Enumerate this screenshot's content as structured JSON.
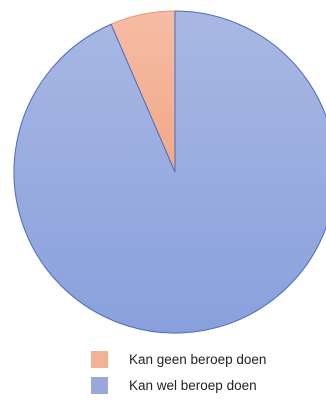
{
  "chart_data": {
    "type": "pie",
    "title": "",
    "slices": [
      {
        "label": "Kan geen beroep doen",
        "value": 6.5,
        "color": "#f4b196",
        "stroke": "#e8956f"
      },
      {
        "label": "Kan wel beroep doen",
        "value": 93.5,
        "color": "#98a8d9",
        "stroke": "#4a6cc0"
      }
    ],
    "start_angle_deg": 0,
    "direction": "counterclockwise",
    "legend_position": "bottom"
  }
}
